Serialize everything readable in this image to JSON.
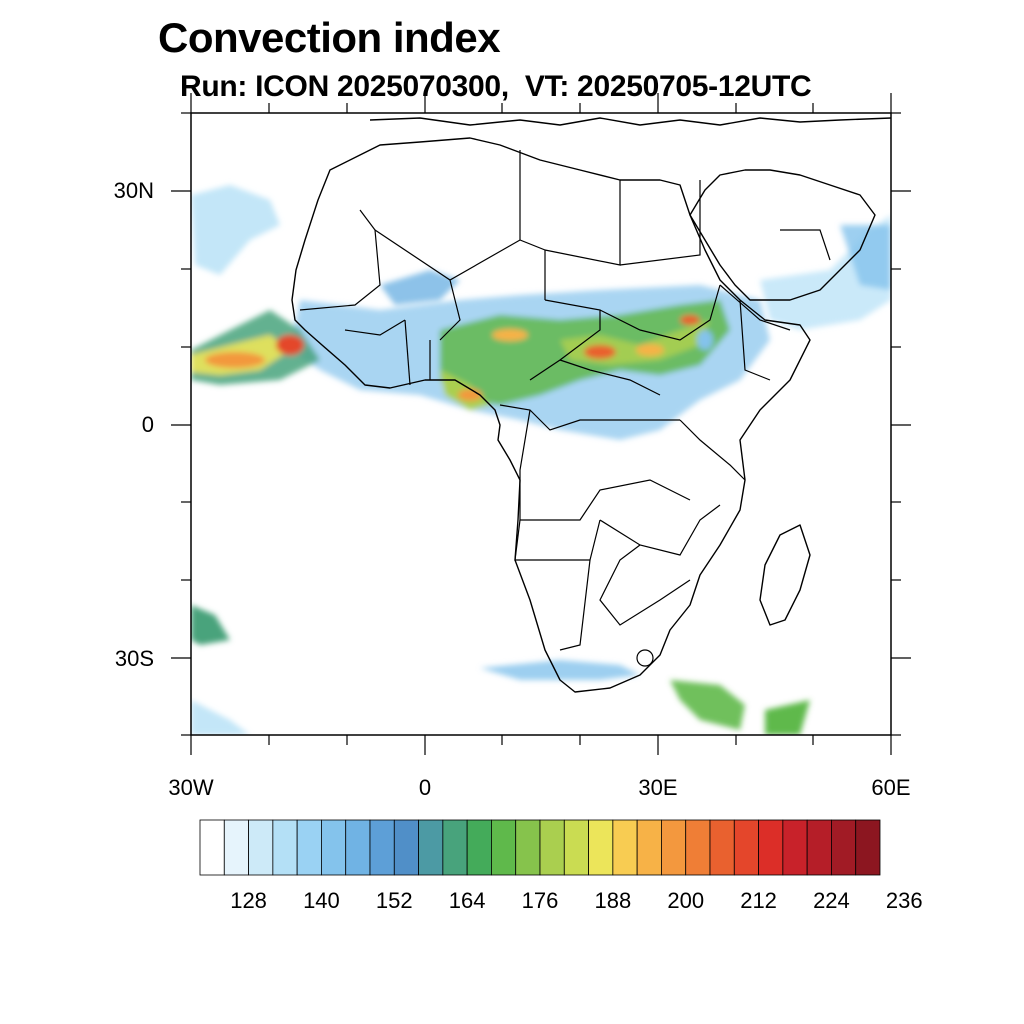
{
  "map": {
    "title": "Convection index",
    "subtitle": "Run: ICON 2025070300,  VT: 20250705-12UTC",
    "lat_labels": [
      "30N",
      "0",
      "30S"
    ],
    "lon_labels": [
      "30W",
      "0",
      "30E",
      "60E"
    ],
    "extent": {
      "lon": [
        -30,
        60
      ],
      "lat": [
        -40,
        40
      ]
    }
  },
  "colorbar": {
    "labels": [
      "128",
      "140",
      "152",
      "164",
      "176",
      "188",
      "200",
      "212",
      "224",
      "236"
    ],
    "colors": [
      "#ffffff",
      "#e6f4fc",
      "#cdeaf8",
      "#b4e0f6",
      "#9ad2f3",
      "#84c3ec",
      "#70b3e4",
      "#5d9fd7",
      "#508fc8",
      "#4c9aa4",
      "#48a37c",
      "#44ab5a",
      "#5fb94b",
      "#86c34c",
      "#aacf4f",
      "#cadc52",
      "#ece55a",
      "#f8cc52",
      "#f7b247",
      "#f3983e",
      "#ef7e36",
      "#e9612f",
      "#e4462b",
      "#dc2e28",
      "#c8222a",
      "#b51e28",
      "#a11b25",
      "#8c1620"
    ]
  },
  "icons": [
    "convection-field",
    "coastlines",
    "country-borders"
  ]
}
